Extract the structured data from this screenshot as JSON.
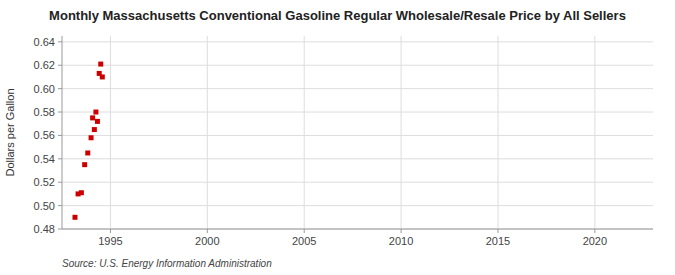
{
  "chart_data": {
    "type": "scatter",
    "title": "Monthly Massachusetts Conventional Gasoline Regular Wholesale/Resale Price by All Sellers",
    "ylabel": "Dollars per Gallon",
    "source": "Source: U.S. Energy Information Administration",
    "x": [
      1993.17,
      1993.33,
      1993.5,
      1993.67,
      1993.83,
      1994.0,
      1994.08,
      1994.17,
      1994.25,
      1994.33,
      1994.42,
      1994.5,
      1994.58
    ],
    "values": [
      0.49,
      0.51,
      0.511,
      0.535,
      0.545,
      0.558,
      0.575,
      0.565,
      0.58,
      0.572,
      0.613,
      0.621,
      0.61
    ],
    "color": "#cc0000",
    "marker": "square",
    "xlim": [
      1992.5,
      2023.0
    ],
    "ylim": [
      0.48,
      0.645
    ],
    "xticks": [
      1995,
      2000,
      2005,
      2010,
      2015,
      2020
    ],
    "yticks": [
      0.48,
      {
        "value": 0.5,
        "label": "0.50"
      },
      0.52,
      0.54,
      0.56,
      0.58,
      {
        "value": 0.6,
        "label": "0.60"
      },
      0.62,
      0.64
    ],
    "grid": true
  }
}
